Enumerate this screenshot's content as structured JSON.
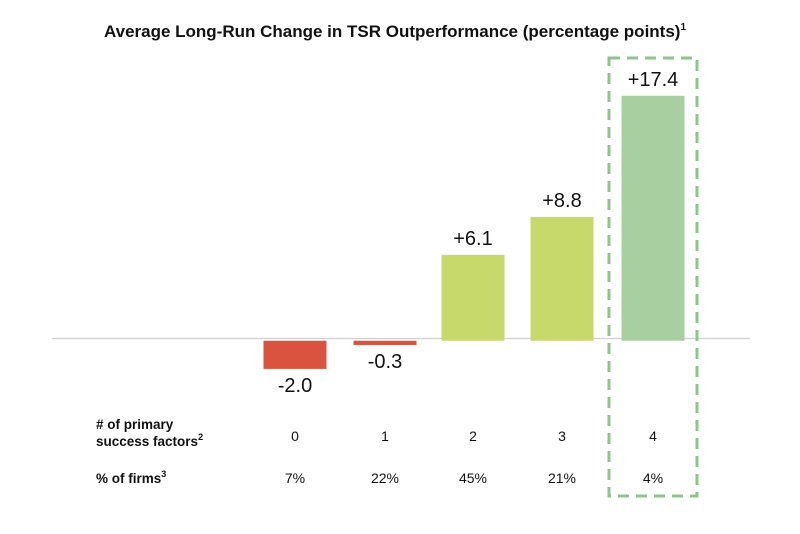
{
  "chart_data": {
    "type": "bar",
    "title": "Average Long-Run Change in TSR Outperformance (percentage points)",
    "title_footnote": "1",
    "categories": [
      "0",
      "1",
      "2",
      "3",
      "4"
    ],
    "values": [
      -2.0,
      -0.3,
      6.1,
      8.8,
      17.4
    ],
    "value_labels": [
      "-2.0",
      "-0.3",
      "+6.1",
      "+8.8",
      "+17.4"
    ],
    "bar_colors": [
      "#d9533f",
      "#d9533f",
      "#c7d96a",
      "#c7d96a",
      "#a8cfa0"
    ],
    "highlight": {
      "category": "4",
      "style": "dashed-box",
      "color": "#8ec58a"
    },
    "ylim": [
      -3.5,
      19.8
    ],
    "grid": false,
    "table_rows": [
      {
        "label_line1": "# of primary",
        "label_line2": "success factors",
        "footnote": "2",
        "cells": [
          "0",
          "1",
          "2",
          "3",
          "4"
        ]
      },
      {
        "label_line1": "% of firms",
        "label_line2": "",
        "footnote": "3",
        "cells": [
          "7%",
          "22%",
          "45%",
          "21%",
          "4%"
        ]
      }
    ]
  }
}
